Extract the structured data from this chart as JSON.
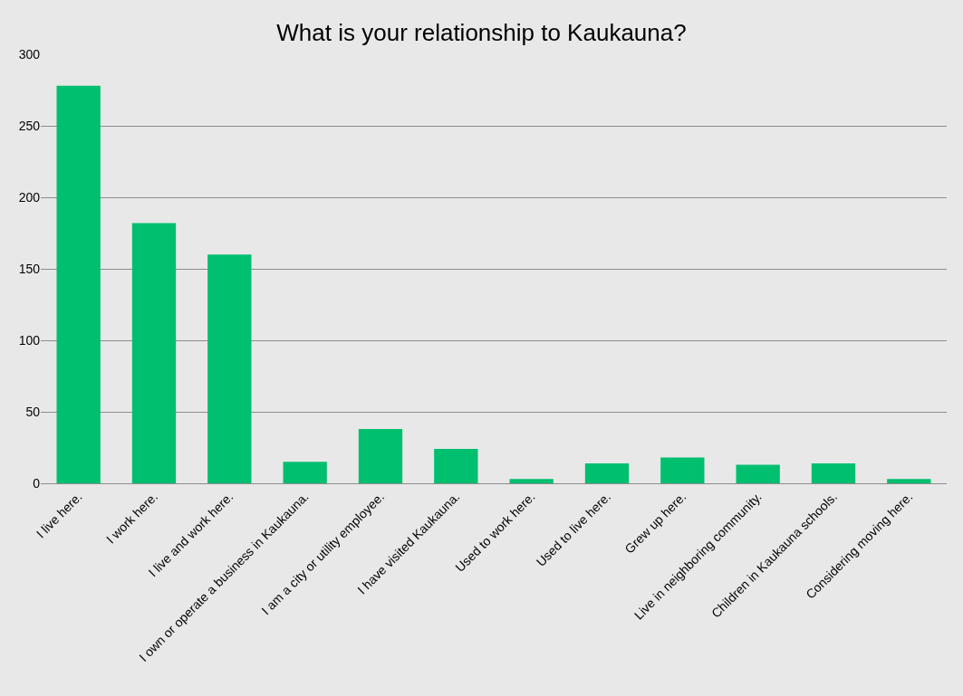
{
  "chart_data": {
    "type": "bar",
    "title": "What is your relationship to Kaukauna?",
    "categories": [
      "I live here.",
      "I work here.",
      "I live and work here.",
      "I own or operate a business in Kaukauna.",
      "I am a city or utility employee.",
      "I have visited Kaukauna.",
      "Used to work here.",
      "Used to live here.",
      "Grew up here.",
      "Live in neighboring community.",
      "Children in Kaukauna schools.",
      "Considering moving here."
    ],
    "values": [
      278,
      182,
      160,
      15,
      38,
      24,
      3,
      14,
      18,
      13,
      14,
      3
    ],
    "color": "#00bf6f",
    "ylim": [
      0,
      300
    ],
    "yticks": [
      0,
      50,
      100,
      150,
      200,
      250,
      300
    ],
    "grid": "y"
  }
}
